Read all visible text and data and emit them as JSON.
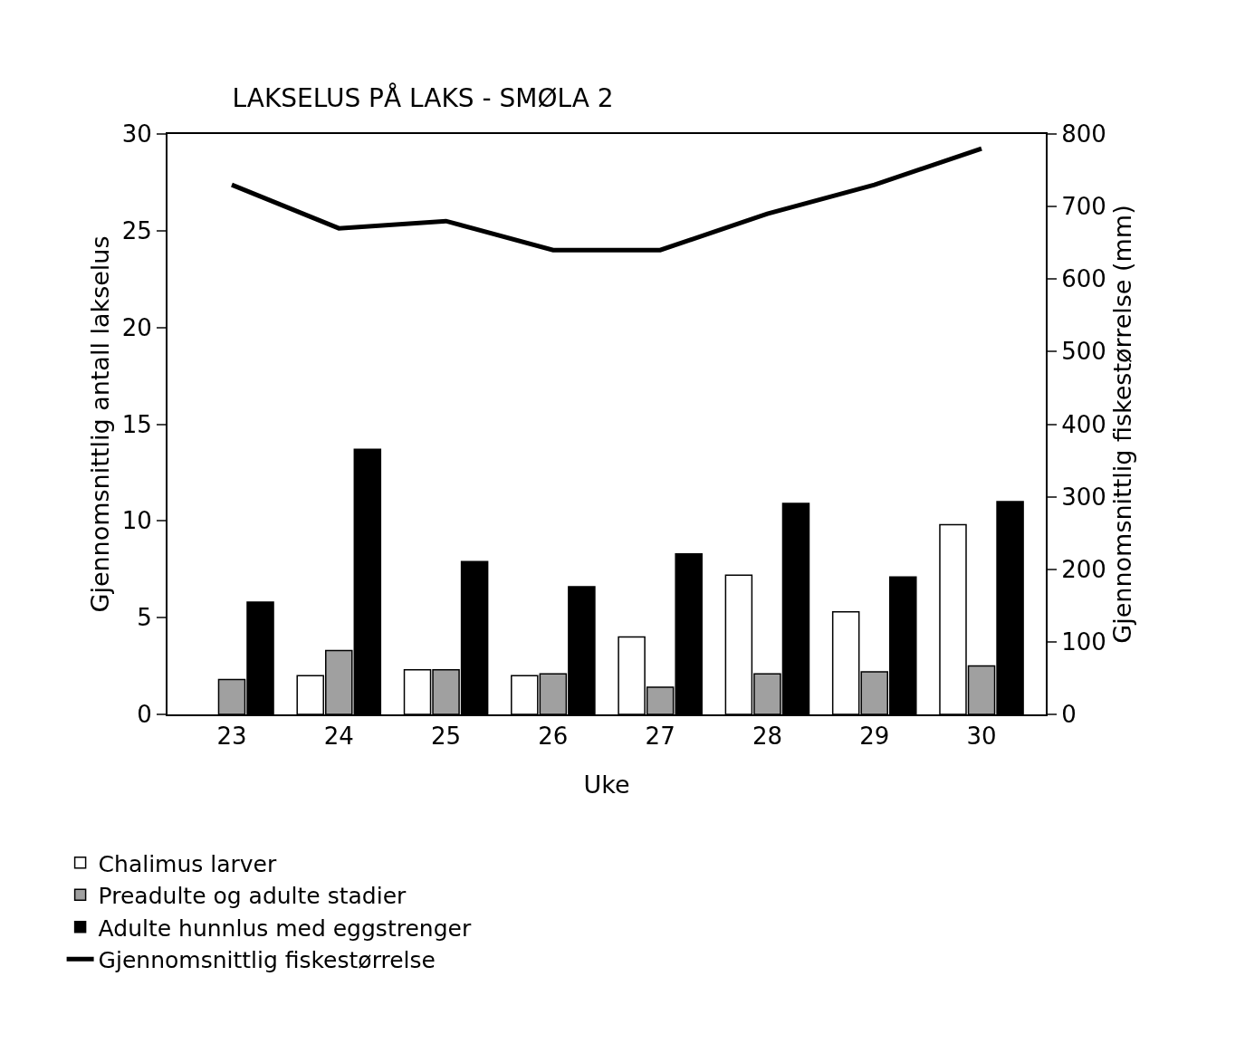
{
  "chart_data": {
    "type": "bar",
    "title": "LAKSELUS PÅ LAKS - SMØLA 2",
    "xlabel": "Uke",
    "ylabel": "Gjennomsnittlig antall lakselus",
    "y2label": "Gjennomsnittlig fiskestørrelse (mm)",
    "categories": [
      "23",
      "24",
      "25",
      "26",
      "27",
      "28",
      "29",
      "30"
    ],
    "series": [
      {
        "name": "Chalimus larver",
        "color": "#ffffff",
        "values": [
          null,
          2.0,
          2.3,
          2.0,
          4.0,
          7.2,
          5.3,
          9.8
        ]
      },
      {
        "name": "Preadulte og adulte stadier",
        "color": "#a0a0a0",
        "values": [
          1.8,
          3.3,
          2.3,
          2.1,
          1.4,
          2.1,
          2.2,
          2.5
        ]
      },
      {
        "name": "Adulte hunnlus med eggstrenger",
        "color": "#000000",
        "values": [
          5.8,
          13.7,
          7.9,
          6.6,
          8.3,
          10.9,
          7.1,
          11.0
        ]
      },
      {
        "name": "Gjennomsnittlig fiskestørrelse",
        "type": "line",
        "axis": "y2",
        "color": "#000000",
        "values": [
          730,
          670,
          680,
          640,
          640,
          690,
          730,
          780
        ]
      }
    ],
    "ylim": [
      0,
      30
    ],
    "yticks": [
      0,
      5,
      10,
      15,
      20,
      25,
      30
    ],
    "y2lim": [
      0,
      800
    ],
    "y2ticks": [
      0,
      100,
      200,
      300,
      400,
      500,
      600,
      700,
      800
    ],
    "grid": false,
    "legend": "bottom left",
    "marker": "none",
    "line_style": "solid"
  }
}
